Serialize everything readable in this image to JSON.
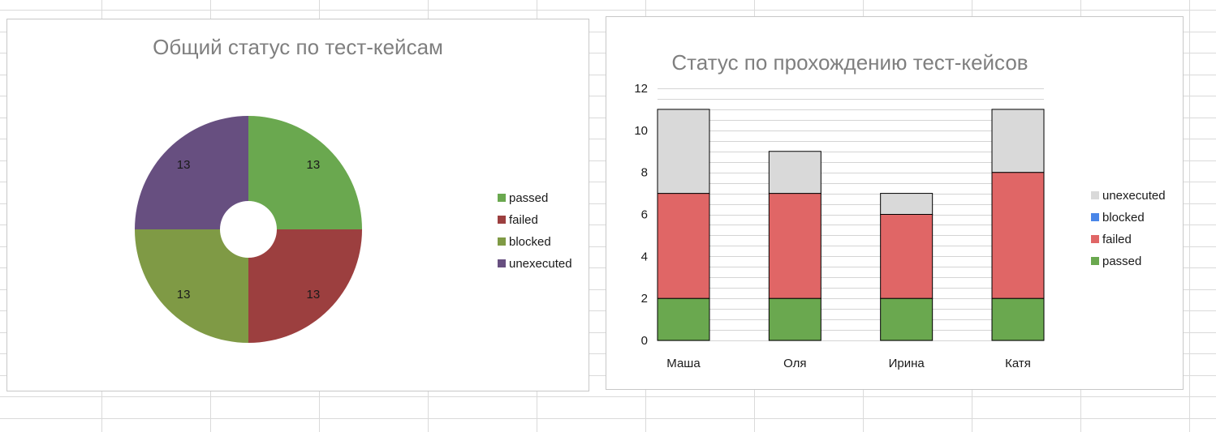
{
  "chart_data": [
    {
      "type": "pie",
      "title": "Общий статус по тест-кейсам",
      "categories": [
        "passed",
        "failed",
        "blocked",
        "unexecuted"
      ],
      "values": [
        13,
        13,
        13,
        13
      ],
      "colors": [
        "#6aa84f",
        "#9c3f3f",
        "#7f9a45",
        "#674f80"
      ],
      "hole": true,
      "data_labels": true,
      "legend": {
        "position": "right",
        "entries": [
          "passed",
          "failed",
          "blocked",
          "unexecuted"
        ]
      }
    },
    {
      "type": "bar",
      "stacked": true,
      "title": "Статус по прохождению тест-кейсов",
      "categories": [
        "Маша",
        "Оля",
        "Ирина",
        "Катя"
      ],
      "series": [
        {
          "name": "passed",
          "values": [
            2,
            2,
            2,
            2
          ],
          "color": "#6aa84f"
        },
        {
          "name": "failed",
          "values": [
            5,
            5,
            4,
            6
          ],
          "color": "#e06666"
        },
        {
          "name": "blocked",
          "values": [
            0,
            0,
            0,
            0
          ],
          "color": "#4a86e8"
        },
        {
          "name": "unexecuted",
          "values": [
            4,
            2,
            1,
            3
          ],
          "color": "#d9d9d9"
        }
      ],
      "ylim": [
        0,
        12
      ],
      "yticks": [
        0,
        2,
        4,
        6,
        8,
        10,
        12
      ],
      "grid": true,
      "legend": {
        "position": "right",
        "entries": [
          "unexecuted",
          "blocked",
          "failed",
          "passed"
        ]
      }
    }
  ]
}
